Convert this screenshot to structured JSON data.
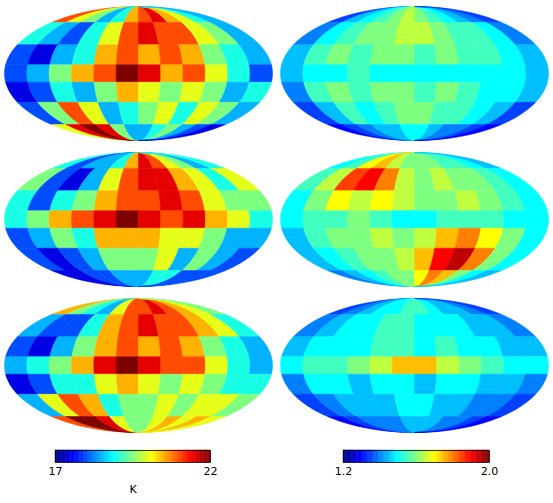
{
  "chart_data": [
    {
      "type": "heatmap",
      "xlim": [
        -180,
        180
      ],
      "ylim": [
        -90,
        90
      ],
      "x": [
        -165,
        -135,
        -105,
        -75,
        -45,
        -15,
        15,
        45,
        75,
        105,
        135,
        165
      ],
      "y": [
        75,
        45,
        19,
        0,
        -19,
        -45,
        -75
      ],
      "maps": [
        [
          [
            21,
            20,
            19.5,
            18.5,
            19,
            20.5,
            21,
            21.5,
            20.5,
            20,
            19,
            18.5
          ],
          [
            19,
            18.5,
            18,
            19,
            20,
            21,
            21.5,
            21,
            21,
            20,
            19.5,
            18.5
          ],
          [
            18,
            17.5,
            18.5,
            19,
            20.5,
            21,
            20.5,
            21,
            20.5,
            19.5,
            19,
            18.5
          ],
          [
            18,
            18.5,
            19.5,
            20.5,
            21,
            22,
            21.5,
            20.5,
            21,
            20,
            19,
            18
          ],
          [
            17.5,
            18,
            19,
            18.5,
            19.5,
            20.5,
            20,
            19.5,
            20,
            19.5,
            18.5,
            19
          ],
          [
            18,
            19.5,
            21,
            20,
            18.5,
            19,
            19.5,
            20,
            19,
            20,
            19.5,
            18.5
          ],
          [
            20,
            21.5,
            22,
            21.5,
            19.5,
            18.5,
            18.5,
            19,
            19.5,
            18.5,
            18,
            17.5
          ]
        ],
        [
          [
            19,
            18,
            18.5,
            18.5,
            19,
            20.5,
            21.5,
            21,
            20,
            19.5,
            18.5,
            19
          ],
          [
            19.5,
            18,
            17.5,
            18.5,
            20,
            21,
            21.5,
            21.5,
            20.5,
            20,
            19,
            20
          ],
          [
            19,
            18,
            19,
            19.5,
            20.5,
            21,
            21,
            21.5,
            21,
            20,
            19.5,
            19.5
          ],
          [
            19,
            19.5,
            20.5,
            21,
            21.5,
            22,
            21.5,
            21,
            21.5,
            20.5,
            20,
            19
          ],
          [
            18,
            18.5,
            19.5,
            19,
            20.5,
            20.5,
            20.5,
            20,
            20,
            19.5,
            18.5,
            18.5
          ],
          [
            18,
            17.5,
            18,
            18.5,
            19.5,
            19.5,
            19.5,
            20,
            18.5,
            19.5,
            18.5,
            18
          ],
          [
            17.5,
            17.5,
            18,
            18,
            18.5,
            18.5,
            18.5,
            19,
            19,
            18,
            18,
            18
          ]
        ],
        [
          [
            20.5,
            19.5,
            19,
            18.5,
            20,
            21,
            21,
            21.5,
            21,
            20.5,
            20,
            19.5
          ],
          [
            18.5,
            18,
            18,
            19,
            20.5,
            21,
            21.5,
            21,
            21,
            20.5,
            20,
            19
          ],
          [
            18,
            17.5,
            18.5,
            19.5,
            20.5,
            21,
            20.5,
            21,
            20.5,
            19.5,
            19,
            18.5
          ],
          [
            18.5,
            19,
            19.5,
            20.5,
            21.5,
            22,
            21.5,
            21,
            21,
            20,
            19,
            18.5
          ],
          [
            17.5,
            18,
            19,
            19,
            20,
            20.5,
            20,
            19.5,
            20,
            19.5,
            19,
            19
          ],
          [
            18.5,
            20,
            21,
            20.5,
            19,
            19.5,
            19.5,
            20,
            19.5,
            20,
            20,
            19.5
          ],
          [
            21,
            22,
            22,
            21.5,
            20,
            19.5,
            19.5,
            20,
            20.5,
            20,
            20.5,
            20
          ]
        ]
      ],
      "colorbar": {
        "range": [
          17,
          22
        ],
        "ticks": [
          17,
          22
        ],
        "label": "K"
      }
    },
    {
      "type": "heatmap",
      "xlim": [
        -180,
        180
      ],
      "ylim": [
        -90,
        90
      ],
      "x": [
        -165,
        -135,
        -105,
        -75,
        -45,
        -15,
        15,
        45,
        75,
        105,
        135,
        165
      ],
      "y": [
        75,
        45,
        19,
        0,
        -19,
        -45,
        -75
      ],
      "maps": [
        [
          [
            1.35,
            1.45,
            1.5,
            1.55,
            1.6,
            1.65,
            1.6,
            1.55,
            1.5,
            1.45,
            1.4,
            1.35
          ],
          [
            1.4,
            1.5,
            1.55,
            1.6,
            1.6,
            1.65,
            1.65,
            1.6,
            1.55,
            1.55,
            1.5,
            1.4
          ],
          [
            1.45,
            1.55,
            1.6,
            1.55,
            1.6,
            1.6,
            1.55,
            1.6,
            1.55,
            1.55,
            1.5,
            1.45
          ],
          [
            1.45,
            1.5,
            1.5,
            1.55,
            1.5,
            1.5,
            1.5,
            1.5,
            1.5,
            1.5,
            1.5,
            1.45
          ],
          [
            1.4,
            1.55,
            1.6,
            1.55,
            1.6,
            1.6,
            1.55,
            1.6,
            1.55,
            1.5,
            1.5,
            1.45
          ],
          [
            1.35,
            1.45,
            1.55,
            1.5,
            1.55,
            1.6,
            1.6,
            1.55,
            1.55,
            1.5,
            1.45,
            1.35
          ],
          [
            1.3,
            1.35,
            1.4,
            1.45,
            1.45,
            1.5,
            1.5,
            1.45,
            1.4,
            1.4,
            1.35,
            1.3
          ]
        ],
        [
          [
            1.5,
            1.55,
            1.7,
            1.75,
            1.65,
            1.6,
            1.6,
            1.6,
            1.55,
            1.55,
            1.5,
            1.45
          ],
          [
            1.55,
            1.65,
            1.85,
            1.9,
            1.8,
            1.65,
            1.6,
            1.65,
            1.6,
            1.6,
            1.55,
            1.5
          ],
          [
            1.5,
            1.6,
            1.7,
            1.65,
            1.7,
            1.65,
            1.6,
            1.6,
            1.65,
            1.6,
            1.55,
            1.5
          ],
          [
            1.5,
            1.55,
            1.55,
            1.6,
            1.55,
            1.5,
            1.5,
            1.55,
            1.55,
            1.55,
            1.5,
            1.5
          ],
          [
            1.45,
            1.55,
            1.6,
            1.6,
            1.65,
            1.6,
            1.65,
            1.75,
            1.8,
            1.7,
            1.6,
            1.5
          ],
          [
            1.45,
            1.5,
            1.55,
            1.6,
            1.6,
            1.65,
            1.75,
            1.9,
            1.95,
            1.8,
            1.6,
            1.5
          ],
          [
            1.4,
            1.45,
            1.5,
            1.55,
            1.6,
            1.6,
            1.7,
            1.8,
            1.75,
            1.6,
            1.5,
            1.45
          ]
        ],
        [
          [
            1.35,
            1.4,
            1.45,
            1.5,
            1.5,
            1.55,
            1.55,
            1.5,
            1.45,
            1.45,
            1.4,
            1.35
          ],
          [
            1.4,
            1.45,
            1.5,
            1.5,
            1.55,
            1.55,
            1.5,
            1.5,
            1.5,
            1.45,
            1.45,
            1.4
          ],
          [
            1.45,
            1.5,
            1.5,
            1.5,
            1.55,
            1.55,
            1.5,
            1.55,
            1.5,
            1.5,
            1.45,
            1.45
          ],
          [
            1.5,
            1.55,
            1.55,
            1.6,
            1.65,
            1.75,
            1.75,
            1.65,
            1.6,
            1.55,
            1.5,
            1.5
          ],
          [
            1.4,
            1.5,
            1.5,
            1.45,
            1.5,
            1.5,
            1.45,
            1.5,
            1.5,
            1.45,
            1.45,
            1.4
          ],
          [
            1.35,
            1.4,
            1.45,
            1.45,
            1.45,
            1.5,
            1.5,
            1.45,
            1.45,
            1.4,
            1.4,
            1.35
          ],
          [
            1.3,
            1.35,
            1.4,
            1.4,
            1.4,
            1.45,
            1.45,
            1.45,
            1.4,
            1.4,
            1.35,
            1.3
          ]
        ]
      ],
      "colorbar": {
        "range": [
          1.2,
          2.0
        ],
        "ticks": [
          1.2,
          {
            "value": 2.0,
            "label": "2.0"
          }
        ]
      }
    }
  ]
}
